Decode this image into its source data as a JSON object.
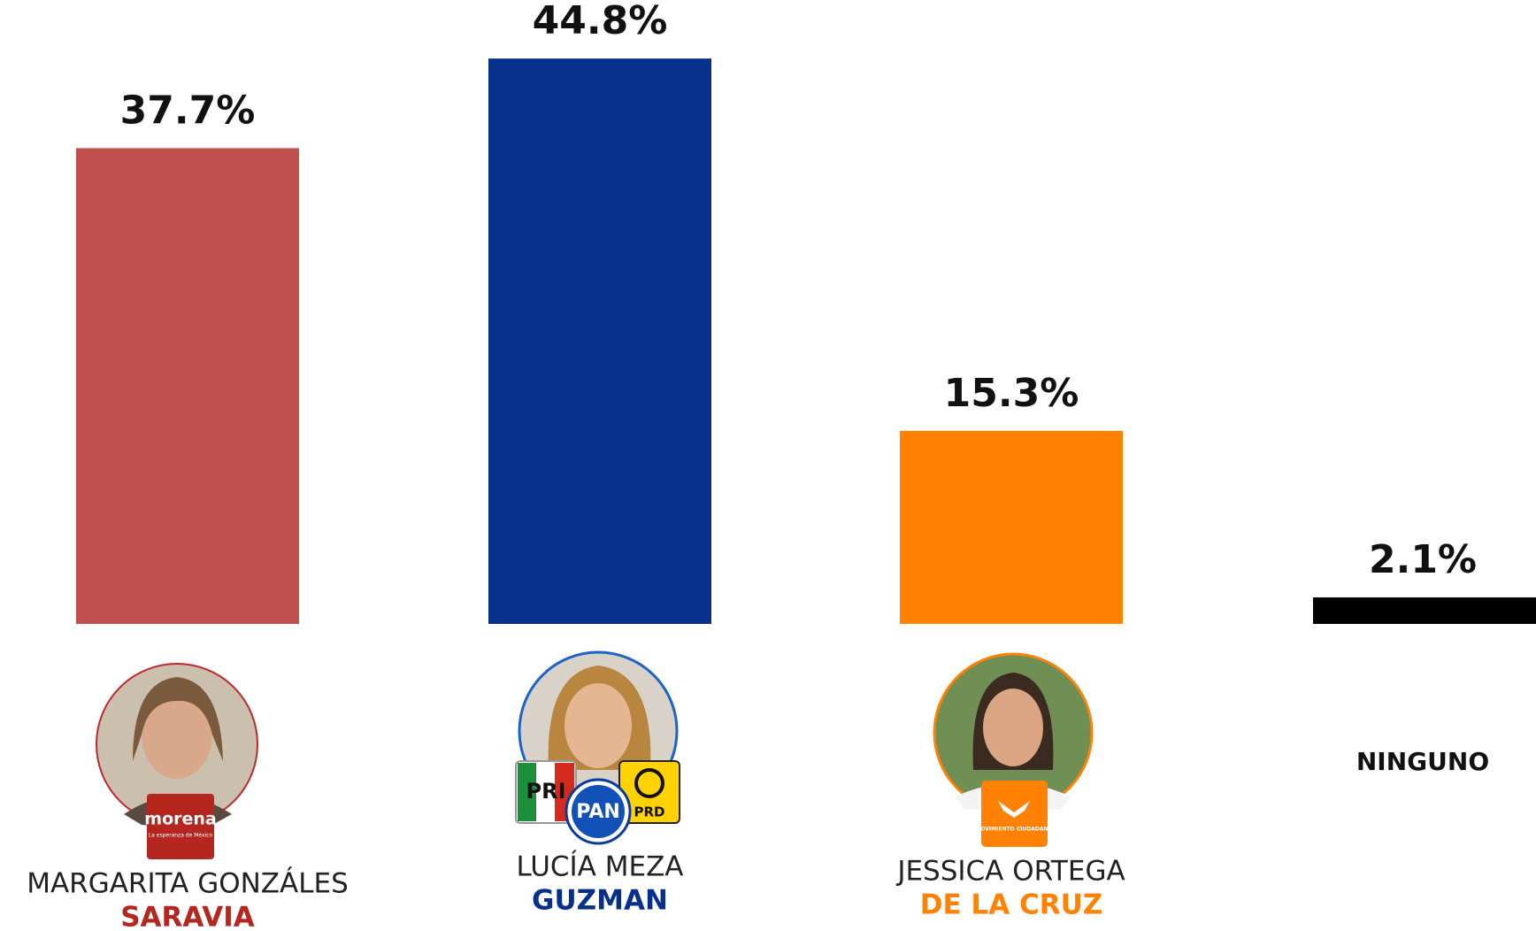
{
  "chart_data": {
    "type": "bar",
    "categories": [
      "MARGARITA GONZÁLES",
      "LUCÍA MEZA",
      "JESSICA ORTEGA",
      "NINGUNO"
    ],
    "surnames": [
      "SARAVIA",
      "GUZMAN",
      "DE LA CRUZ",
      null
    ],
    "values": [
      37.7,
      44.8,
      15.3,
      2.1
    ],
    "value_labels": [
      "37.7%",
      "44.8%",
      "15.3%",
      "2.1%"
    ],
    "colors": [
      "#c0504d",
      "#06308a",
      "#ff8205",
      "#000000"
    ],
    "ylim": [
      0,
      45
    ]
  },
  "logos": {
    "morena": "morena",
    "morena_tagline": "La esperanza de México",
    "pri": "PRI",
    "pan": "PAN",
    "prd": "PRD",
    "mc": "MOVIMIENTO CIUDADANO"
  }
}
